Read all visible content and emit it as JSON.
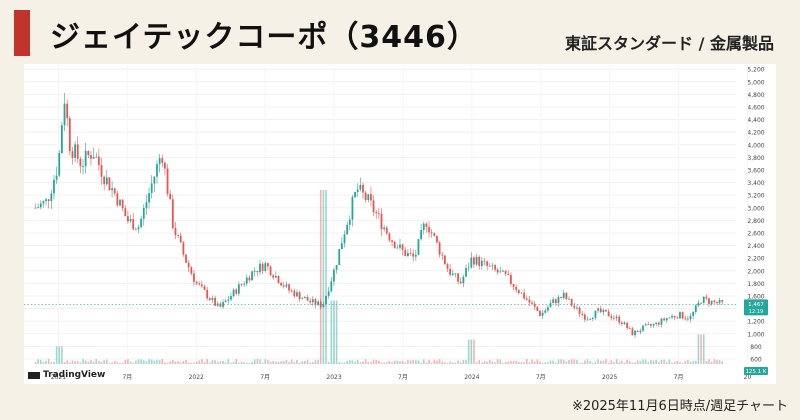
{
  "header": {
    "title": "ジェイテックコーポ（3446）",
    "market": "東証スタンダード / 金属製品"
  },
  "footer": {
    "note": "※2025年11月6日時点/週足チャート"
  },
  "branding": {
    "watermark": "TradingView"
  },
  "colors": {
    "accent": "#c0342b",
    "up": "#26a69a",
    "down": "#ef5350",
    "background": "#f5f1e6"
  },
  "chart_data": {
    "type": "candlestick",
    "title": "",
    "x_ticks": [
      "2021",
      "7月",
      "2022",
      "7月",
      "2023",
      "7月",
      "2024",
      "7月",
      "2025",
      "7月",
      "20"
    ],
    "y_ticks": [
      600,
      800,
      1000,
      1200,
      1400,
      1600,
      1800,
      2000,
      2200,
      2400,
      2600,
      2800,
      3000,
      3200,
      3400,
      3600,
      3800,
      4000,
      4200,
      4400,
      4600,
      4800,
      5000,
      5200
    ],
    "ylim": [
      520,
      5250
    ],
    "last_price": "1,467",
    "last_change": "12:19",
    "volume_last": "125.1 K",
    "price_path": [
      {
        "x": "2020-11",
        "y": 3000
      },
      {
        "x": "2020-12",
        "y": 3100
      },
      {
        "x": "2021-01",
        "y": 3700
      },
      {
        "x": "2021-01",
        "y": 4800
      },
      {
        "x": "2021-02",
        "y": 4000
      },
      {
        "x": "2021-03",
        "y": 3700
      },
      {
        "x": "2021-04",
        "y": 3900
      },
      {
        "x": "2021-05",
        "y": 3500
      },
      {
        "x": "2021-06",
        "y": 3200
      },
      {
        "x": "2021-07",
        "y": 2800
      },
      {
        "x": "2021-08",
        "y": 2700
      },
      {
        "x": "2021-09",
        "y": 3300
      },
      {
        "x": "2021-10",
        "y": 3900
      },
      {
        "x": "2021-11",
        "y": 2700
      },
      {
        "x": "2021-12",
        "y": 2200
      },
      {
        "x": "2022-01",
        "y": 1800
      },
      {
        "x": "2022-02",
        "y": 1600
      },
      {
        "x": "2022-03",
        "y": 1400
      },
      {
        "x": "2022-04",
        "y": 1600
      },
      {
        "x": "2022-05",
        "y": 1800
      },
      {
        "x": "2022-06",
        "y": 2000
      },
      {
        "x": "2022-07",
        "y": 2100
      },
      {
        "x": "2022-08",
        "y": 1900
      },
      {
        "x": "2022-09",
        "y": 1700
      },
      {
        "x": "2022-10",
        "y": 1600
      },
      {
        "x": "2022-11",
        "y": 1500
      },
      {
        "x": "2022-12",
        "y": 1450
      },
      {
        "x": "2023-01",
        "y": 2000
      },
      {
        "x": "2023-02",
        "y": 2700
      },
      {
        "x": "2023-03",
        "y": 3300
      },
      {
        "x": "2023-04",
        "y": 3100
      },
      {
        "x": "2023-05",
        "y": 2800
      },
      {
        "x": "2023-06",
        "y": 2500
      },
      {
        "x": "2023-07",
        "y": 2300
      },
      {
        "x": "2023-08",
        "y": 2200
      },
      {
        "x": "2023-09",
        "y": 2800
      },
      {
        "x": "2023-10",
        "y": 2400
      },
      {
        "x": "2023-11",
        "y": 2000
      },
      {
        "x": "2023-12",
        "y": 1800
      },
      {
        "x": "2024-01",
        "y": 2200
      },
      {
        "x": "2024-02",
        "y": 2100
      },
      {
        "x": "2024-03",
        "y": 2000
      },
      {
        "x": "2024-04",
        "y": 1900
      },
      {
        "x": "2024-05",
        "y": 1700
      },
      {
        "x": "2024-06",
        "y": 1500
      },
      {
        "x": "2024-07",
        "y": 1300
      },
      {
        "x": "2024-08",
        "y": 1500
      },
      {
        "x": "2024-09",
        "y": 1600
      },
      {
        "x": "2024-10",
        "y": 1400
      },
      {
        "x": "2024-11",
        "y": 1250
      },
      {
        "x": "2024-12",
        "y": 1350
      },
      {
        "x": "2025-01",
        "y": 1300
      },
      {
        "x": "2025-02",
        "y": 1200
      },
      {
        "x": "2025-03",
        "y": 1000
      },
      {
        "x": "2025-04",
        "y": 1100
      },
      {
        "x": "2025-05",
        "y": 1150
      },
      {
        "x": "2025-06",
        "y": 1250
      },
      {
        "x": "2025-07",
        "y": 1300
      },
      {
        "x": "2025-08",
        "y": 1250
      },
      {
        "x": "2025-09",
        "y": 1550
      },
      {
        "x": "2025-10",
        "y": 1500
      },
      {
        "x": "2025-11",
        "y": 1467
      }
    ],
    "volume_spikes": [
      {
        "x": "2022-12",
        "relative": 1.0
      },
      {
        "x": "2023-01",
        "relative": 0.35
      },
      {
        "x": "2021-01",
        "relative": 0.08
      },
      {
        "x": "2024-01",
        "relative": 0.12
      },
      {
        "x": "2025-09",
        "relative": 0.15
      }
    ]
  }
}
